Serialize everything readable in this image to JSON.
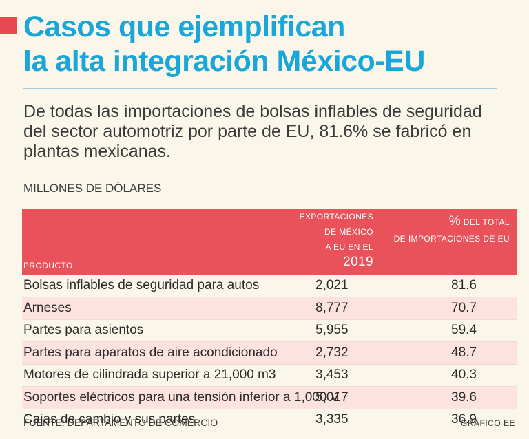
{
  "header": {
    "title_line1": "Casos que ejemplifican",
    "title_line2": "la alta integración México-EU",
    "subtitle": "De todas las importaciones de bolsas inflables de seguridad del sector automotriz por parte de EU, 81.6% se fabricó en plantas mexicanas.",
    "units": "MILLONES DE DÓLARES"
  },
  "colors": {
    "title": "#1aa6d8",
    "header_band": "#e9525a",
    "accent": "#e8484f",
    "stripe": "#fce3df"
  },
  "chart_data": {
    "type": "table",
    "title": "Casos que ejemplifican la alta integración México-EU",
    "units": "MILLONES DE DÓLARES",
    "columns": {
      "product": "PRODUCTO",
      "exports_line1": "EXPORTACIONES DE MÉXICO",
      "exports_line2_prefix": "A EU EN EL ",
      "exports_year": "2019",
      "pct_symbol": "%",
      "pct_line1": " DEL TOTAL",
      "pct_line2": "DE IMPORTACIONES DE EU"
    },
    "rows": [
      {
        "product": "Bolsas inflables de seguridad para autos",
        "exports": "2,021",
        "pct": "81.6"
      },
      {
        "product": "Arneses",
        "exports": "8,777",
        "pct": "70.7"
      },
      {
        "product": "Partes para asientos",
        "exports": "5,955",
        "pct": "59.4"
      },
      {
        "product": "Partes para aparatos de aire acondicionado",
        "exports": "2,732",
        "pct": "48.7"
      },
      {
        "product": "Motores de cilindrada superior a 21,000 m3",
        "exports": "3,453",
        "pct": "40.3"
      },
      {
        "product": "Soportes eléctricos para una tensión inferior a 1,000 V",
        "exports": "5,017",
        "pct": "39.6"
      },
      {
        "product": "Cajas de cambio y sus partes",
        "exports": "3,335",
        "pct": "36.9"
      }
    ]
  },
  "footer": {
    "source": "FUENTE: DEPARTAMENTO DE COMERCIO",
    "credit": "GRÁFICO EE"
  }
}
